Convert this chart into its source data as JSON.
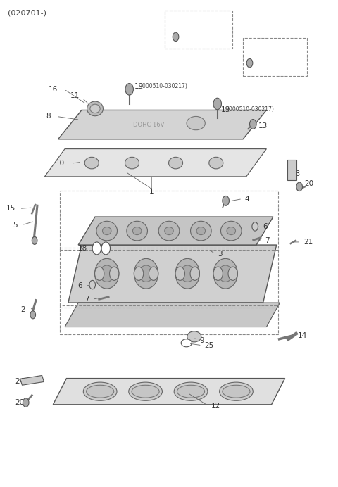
{
  "background_color": "#ffffff",
  "fig_width": 4.8,
  "fig_height": 6.92,
  "dpi": 100,
  "header_text": "(020701-)"
}
